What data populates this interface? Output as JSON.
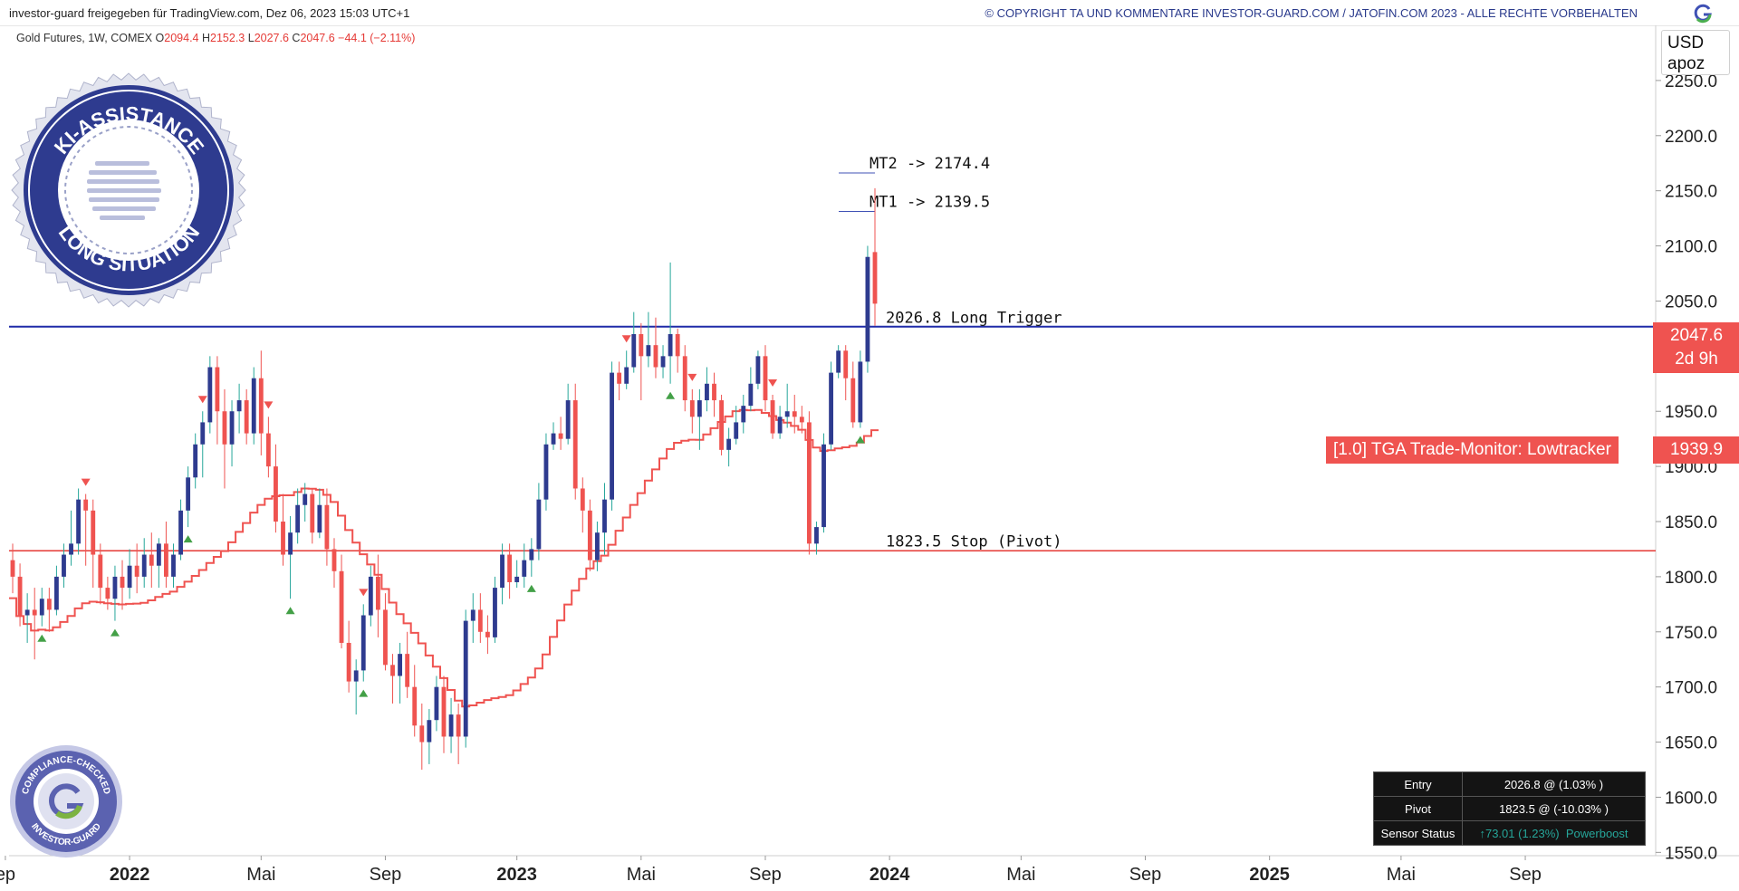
{
  "header": {
    "published_by": "investor-guard freigegeben für TradingView.com, Dez 06, 2023 15:03 UTC+1",
    "copyright": "© COPYRIGHT TA UND KOMMENTARE INVESTOR-GUARD.COM / JATOFIN.COM 2023 - ALLE RECHTE VORBEHALTEN",
    "logo_icon": "g-logo-icon"
  },
  "legend": {
    "symbol": "Gold Futures, 1W, COMEX",
    "open": "2094.4",
    "high": "2152.3",
    "low": "2027.6",
    "close": "2047.6",
    "change": "−44.1 (−2.11%)"
  },
  "axis_box": {
    "currency": "USD",
    "mode": "apoz"
  },
  "price_badge": {
    "price": "2047.6",
    "countdown": "2d 9h"
  },
  "lowtracker": {
    "label": "[1.0] TGA Trade-Monitor: Lowtracker",
    "value": "1939.9"
  },
  "info_table": {
    "rows": [
      {
        "key": "Entry",
        "value": "2026.8 @ (1.03% )"
      },
      {
        "key": "Pivot",
        "value": "1823.5 @ (-10.03% )"
      },
      {
        "key": "Sensor Status",
        "value": "↑73.01 (1.23%)",
        "extra": "Powerboost"
      }
    ]
  },
  "seal_top": {
    "top_text": "KI-ASSISTANCE",
    "bottom_text": "LONG SITUATION",
    "color": "#2e3b8f"
  },
  "seal_bottom": {
    "top_text": "COMPLIANCE-CHECKED",
    "bottom_text": "INVESTOR-GUARD",
    "color": "#5b62b0"
  },
  "colors": {
    "up": "#2e3b8f",
    "down": "#ef5350",
    "wick_up": "#26a69a",
    "trigger_line": "#1f2aa8",
    "stop_line": "#e53935",
    "tracker": "#ef5350"
  },
  "chart_data": {
    "type": "candlestick",
    "title": "Gold Futures, 1W, COMEX",
    "ylim": [
      1547,
      2300
    ],
    "y_ticks": [
      "1550.0",
      "1600.0",
      "1650.0",
      "1700.0",
      "1750.0",
      "1800.0",
      "1850.0",
      "1900.0",
      "1950.0",
      "2000.0",
      "2050.0",
      "2100.0",
      "2150.0",
      "2200.0",
      "2250.0"
    ],
    "x_ticks": [
      "ep",
      "2022",
      "Mai",
      "Sep",
      "2023",
      "Mai",
      "Sep",
      "2024",
      "Mai",
      "Sep",
      "2025",
      "Mai",
      "Sep"
    ],
    "levels": [
      {
        "name": "Long Trigger",
        "label": "2026.8  Long Trigger",
        "value": 2026.8
      },
      {
        "name": "Stop (Pivot)",
        "label": "1823.5  Stop (Pivot)",
        "value": 1823.5
      }
    ],
    "targets": [
      {
        "label": "MT2 -> 2174.4",
        "value": 2174.4
      },
      {
        "label": "MT1 -> 2139.5",
        "value": 2139.5
      }
    ],
    "candles": [
      [
        1815,
        1830,
        1785,
        1800
      ],
      [
        1800,
        1812,
        1755,
        1765
      ],
      [
        1765,
        1785,
        1740,
        1770
      ],
      [
        1770,
        1790,
        1725,
        1765
      ],
      [
        1765,
        1790,
        1755,
        1780
      ],
      [
        1780,
        1790,
        1750,
        1770
      ],
      [
        1770,
        1810,
        1765,
        1800
      ],
      [
        1800,
        1830,
        1790,
        1820
      ],
      [
        1820,
        1860,
        1810,
        1830
      ],
      [
        1830,
        1880,
        1820,
        1870
      ],
      [
        1870,
        1875,
        1810,
        1860
      ],
      [
        1860,
        1870,
        1790,
        1820
      ],
      [
        1820,
        1830,
        1775,
        1790
      ],
      [
        1790,
        1800,
        1770,
        1780
      ],
      [
        1780,
        1810,
        1760,
        1800
      ],
      [
        1800,
        1815,
        1770,
        1790
      ],
      [
        1790,
        1825,
        1780,
        1810
      ],
      [
        1810,
        1830,
        1785,
        1800
      ],
      [
        1800,
        1835,
        1790,
        1820
      ],
      [
        1820,
        1840,
        1790,
        1810
      ],
      [
        1810,
        1835,
        1790,
        1830
      ],
      [
        1830,
        1850,
        1790,
        1800
      ],
      [
        1800,
        1830,
        1790,
        1820
      ],
      [
        1820,
        1870,
        1815,
        1860
      ],
      [
        1860,
        1900,
        1845,
        1890
      ],
      [
        1890,
        1930,
        1880,
        1920
      ],
      [
        1920,
        1950,
        1890,
        1940
      ],
      [
        1940,
        2000,
        1930,
        1990
      ],
      [
        1990,
        2000,
        1920,
        1950
      ],
      [
        1950,
        1970,
        1880,
        1920
      ],
      [
        1920,
        1960,
        1900,
        1950
      ],
      [
        1950,
        1975,
        1930,
        1960
      ],
      [
        1960,
        1970,
        1920,
        1930
      ],
      [
        1930,
        1990,
        1920,
        1980
      ],
      [
        1980,
        2005,
        1910,
        1930
      ],
      [
        1930,
        1945,
        1890,
        1900
      ],
      [
        1900,
        1920,
        1840,
        1850
      ],
      [
        1850,
        1875,
        1810,
        1820
      ],
      [
        1820,
        1855,
        1780,
        1840
      ],
      [
        1840,
        1880,
        1830,
        1865
      ],
      [
        1865,
        1885,
        1850,
        1875
      ],
      [
        1875,
        1880,
        1830,
        1840
      ],
      [
        1840,
        1880,
        1835,
        1865
      ],
      [
        1865,
        1880,
        1810,
        1825
      ],
      [
        1825,
        1835,
        1790,
        1805
      ],
      [
        1805,
        1820,
        1735,
        1740
      ],
      [
        1740,
        1760,
        1695,
        1705
      ],
      [
        1705,
        1725,
        1675,
        1715
      ],
      [
        1715,
        1775,
        1705,
        1765
      ],
      [
        1765,
        1810,
        1755,
        1800
      ],
      [
        1800,
        1820,
        1745,
        1770
      ],
      [
        1770,
        1785,
        1715,
        1720
      ],
      [
        1720,
        1730,
        1685,
        1710
      ],
      [
        1710,
        1740,
        1685,
        1730
      ],
      [
        1730,
        1750,
        1690,
        1700
      ],
      [
        1700,
        1720,
        1655,
        1665
      ],
      [
        1665,
        1685,
        1625,
        1650
      ],
      [
        1650,
        1680,
        1630,
        1670
      ],
      [
        1670,
        1710,
        1660,
        1700
      ],
      [
        1700,
        1710,
        1640,
        1655
      ],
      [
        1655,
        1690,
        1640,
        1675
      ],
      [
        1675,
        1685,
        1630,
        1655
      ],
      [
        1655,
        1770,
        1645,
        1760
      ],
      [
        1760,
        1785,
        1740,
        1770
      ],
      [
        1770,
        1785,
        1740,
        1750
      ],
      [
        1750,
        1765,
        1730,
        1745
      ],
      [
        1745,
        1800,
        1740,
        1790
      ],
      [
        1790,
        1830,
        1775,
        1820
      ],
      [
        1820,
        1830,
        1780,
        1795
      ],
      [
        1795,
        1815,
        1790,
        1800
      ],
      [
        1800,
        1830,
        1790,
        1815
      ],
      [
        1815,
        1835,
        1800,
        1825
      ],
      [
        1825,
        1885,
        1815,
        1870
      ],
      [
        1870,
        1930,
        1860,
        1920
      ],
      [
        1920,
        1940,
        1915,
        1930
      ],
      [
        1930,
        1945,
        1915,
        1925
      ],
      [
        1925,
        1975,
        1920,
        1960
      ],
      [
        1960,
        1975,
        1870,
        1880
      ],
      [
        1880,
        1890,
        1840,
        1860
      ],
      [
        1860,
        1870,
        1805,
        1815
      ],
      [
        1815,
        1850,
        1805,
        1840
      ],
      [
        1840,
        1885,
        1820,
        1870
      ],
      [
        1870,
        1995,
        1860,
        1985
      ],
      [
        1985,
        1995,
        1960,
        1975
      ],
      [
        1975,
        2005,
        1970,
        1990
      ],
      [
        1990,
        2040,
        1985,
        2020
      ],
      [
        2020,
        2030,
        1960,
        2000
      ],
      [
        2000,
        2040,
        1990,
        2010
      ],
      [
        2010,
        2035,
        1980,
        1990
      ],
      [
        1990,
        2010,
        1980,
        2000
      ],
      [
        2000,
        2085,
        1975,
        2020
      ],
      [
        2020,
        2025,
        1985,
        2000
      ],
      [
        2000,
        2010,
        1950,
        1960
      ],
      [
        1960,
        1970,
        1930,
        1945
      ],
      [
        1945,
        1970,
        1915,
        1960
      ],
      [
        1960,
        1990,
        1950,
        1975
      ],
      [
        1975,
        1985,
        1945,
        1960
      ],
      [
        1960,
        1965,
        1910,
        1915
      ],
      [
        1915,
        1935,
        1900,
        1925
      ],
      [
        1925,
        1955,
        1920,
        1940
      ],
      [
        1940,
        1965,
        1930,
        1955
      ],
      [
        1955,
        1990,
        1950,
        1975
      ],
      [
        1975,
        2005,
        1970,
        2000
      ],
      [
        2000,
        2010,
        1950,
        1960
      ],
      [
        1960,
        1965,
        1925,
        1930
      ],
      [
        1930,
        1955,
        1925,
        1945
      ],
      [
        1945,
        1975,
        1935,
        1950
      ],
      [
        1950,
        1965,
        1930,
        1945
      ],
      [
        1945,
        1955,
        1930,
        1940
      ],
      [
        1940,
        1950,
        1820,
        1830
      ],
      [
        1830,
        1850,
        1820,
        1845
      ],
      [
        1845,
        1930,
        1840,
        1920
      ],
      [
        1920,
        1995,
        1915,
        1985
      ],
      [
        1985,
        2010,
        1980,
        2005
      ],
      [
        2005,
        2010,
        1960,
        1980
      ],
      [
        1980,
        1995,
        1935,
        1940
      ],
      [
        1940,
        2005,
        1935,
        1995
      ],
      [
        1995,
        2100,
        1985,
        2090
      ],
      [
        2094.4,
        2152.3,
        2027.6,
        2047.6
      ]
    ],
    "signals_down_index": [
      10,
      26,
      35,
      48,
      84,
      93,
      104
    ],
    "signals_up_index": [
      4,
      14,
      24,
      38,
      48,
      71,
      90,
      116
    ]
  }
}
